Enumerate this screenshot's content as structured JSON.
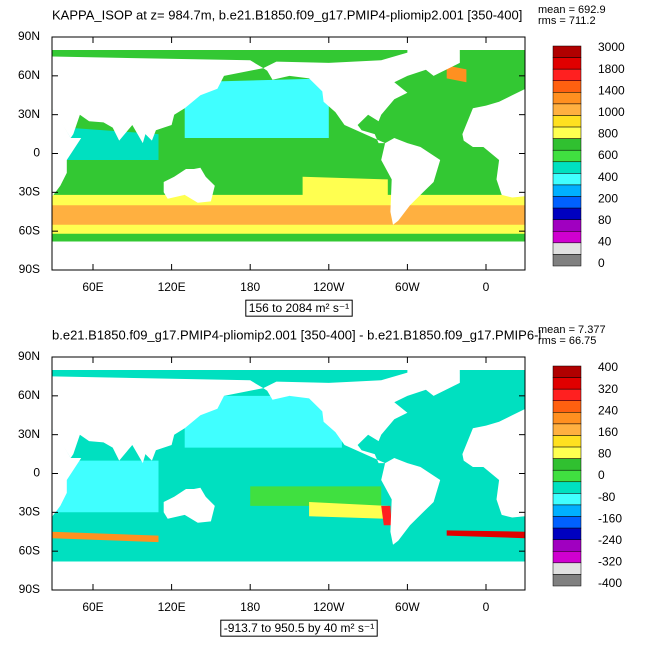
{
  "panels": [
    {
      "title": "KAPPA_ISOP at z= 984.7m, b.e21.B1850.f09_g17.PMIP4-pliomip2.001 [350-400]",
      "mean": "mean = 692.9",
      "rms": "rms = 711.2",
      "lat_labels": [
        "90N",
        "60N",
        "30N",
        "0",
        "30S",
        "60S",
        "90S"
      ],
      "lon_labels": [
        "60E",
        "120E",
        "180",
        "120W",
        "60W",
        "0"
      ],
      "colorbar": {
        "labels": [
          "3000",
          "1800",
          "1400",
          "1000",
          "800",
          "600",
          "400",
          "200",
          "80",
          "40",
          "0"
        ],
        "colors": [
          "#b00000",
          "#e00000",
          "#ff2020",
          "#ff6010",
          "#ff9020",
          "#ffb040",
          "#ffe020",
          "#ffff50",
          "#30c030",
          "#40e040",
          "#00e0c0",
          "#40ffff",
          "#00b0ff",
          "#0060ff",
          "#0000c0",
          "#a000c0",
          "#d000d0",
          "#e0e0e0",
          "#808080"
        ]
      },
      "range": "156 to 2084 m² s⁻¹"
    },
    {
      "title": "b.e21.B1850.f09_g17.PMIP4-pliomip2.001 [350-400] - b.e21.B1850.f09_g17.PMIP6-l",
      "mean": "mean = 7.377",
      "rms": "rms = 66.75",
      "lat_labels": [
        "90N",
        "60N",
        "30N",
        "0",
        "30S",
        "60S",
        "90S"
      ],
      "lon_labels": [
        "60E",
        "120E",
        "180",
        "120W",
        "60W",
        "0"
      ],
      "colorbar": {
        "labels": [
          "400",
          "320",
          "240",
          "160",
          "80",
          "0",
          "-80",
          "-160",
          "-240",
          "-320",
          "-400"
        ],
        "colors": [
          "#b00000",
          "#e00000",
          "#ff2020",
          "#ff6010",
          "#ff9020",
          "#ffb040",
          "#ffe020",
          "#ffff50",
          "#30c030",
          "#40e040",
          "#00e0c0",
          "#40ffff",
          "#00b0ff",
          "#0060ff",
          "#0000c0",
          "#a000c0",
          "#d000d0",
          "#e0e0e0",
          "#808080"
        ]
      },
      "range": "-913.7 to 950.5 by 40 m² s⁻¹"
    }
  ]
}
